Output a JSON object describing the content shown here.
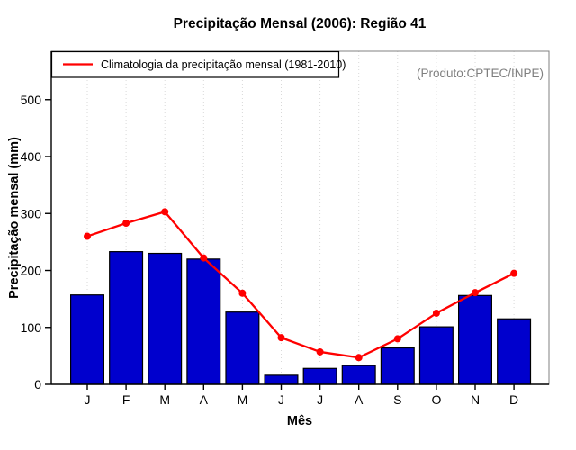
{
  "title": "Precipitação Mensal (2006): Região 41",
  "annotation": "(Produto:CPTEC/INPE)",
  "legend": {
    "label": "Climatologia da precipitação mensal (1981-2010)",
    "line_color": "#ff0000"
  },
  "chart_data": {
    "type": "bar",
    "title": "Precipitação Mensal (2006): Região 41",
    "xlabel": "Mês",
    "ylabel": "Precipitação mensal (mm)",
    "categories": [
      "J",
      "F",
      "M",
      "A",
      "M",
      "J",
      "J",
      "A",
      "S",
      "O",
      "N",
      "D"
    ],
    "series": [
      {
        "name": "Precipitação mensal 2006",
        "type": "bar",
        "color": "#0000cd",
        "values": [
          157,
          233,
          230,
          220,
          127,
          16,
          28,
          33,
          64,
          101,
          156,
          115
        ]
      },
      {
        "name": "Climatologia da precipitação mensal (1981-2010)",
        "type": "line",
        "color": "#ff0000",
        "values": [
          260,
          283,
          303,
          222,
          160,
          82,
          57,
          47,
          80,
          125,
          161,
          195
        ]
      }
    ],
    "ylim": [
      0,
      585
    ],
    "yticks": [
      "0",
      "100",
      "200",
      "300",
      "400",
      "500"
    ],
    "grid": "vertical-dotted",
    "legend_position": "top-left",
    "colors": {
      "bar": "#0000cd",
      "bar_border": "#000000",
      "line": "#ff0000",
      "grid": "#d9d9d9",
      "frame": "#808080",
      "axis": "#000000",
      "annotation": "#7f7f7f"
    }
  }
}
